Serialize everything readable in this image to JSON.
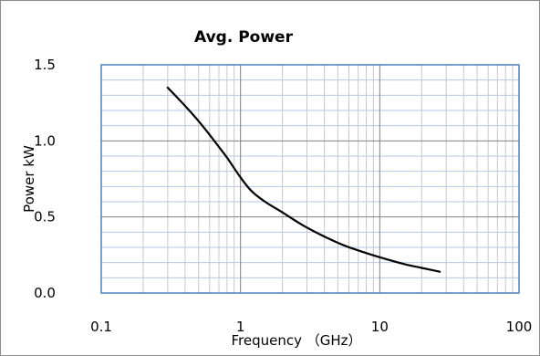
{
  "chart_data": {
    "type": "line",
    "title": "Avg.  Power",
    "xlabel": "Frequency （GHz）",
    "ylabel": "Power kW",
    "xscale": "log",
    "xlim": [
      0.1,
      100
    ],
    "ylim": [
      0,
      1.5
    ],
    "x_ticks": [
      0.1,
      1,
      10,
      100
    ],
    "x_tick_labels": [
      "0.1",
      "1",
      "10",
      "100"
    ],
    "y_ticks": [
      0,
      0.5,
      1.0,
      1.5
    ],
    "y_tick_labels": [
      "0.0",
      "0.5",
      "1.0",
      "1.5"
    ],
    "grid": true,
    "legend": "none",
    "colors": {
      "line": "#000000",
      "frame": "#4f81bd",
      "major_grid": "#808080",
      "minor_grid": "#b4c7e7"
    },
    "series": [
      {
        "x": [
          0.3,
          0.4,
          0.5,
          0.6,
          0.7,
          0.8,
          1.0,
          1.2,
          1.5,
          2.0,
          3.0,
          5.0,
          7.0,
          10,
          15,
          20,
          27
        ],
        "y": [
          1.35,
          1.23,
          1.13,
          1.04,
          0.96,
          0.89,
          0.76,
          0.67,
          0.6,
          0.53,
          0.43,
          0.33,
          0.28,
          0.235,
          0.19,
          0.165,
          0.14
        ]
      }
    ]
  }
}
